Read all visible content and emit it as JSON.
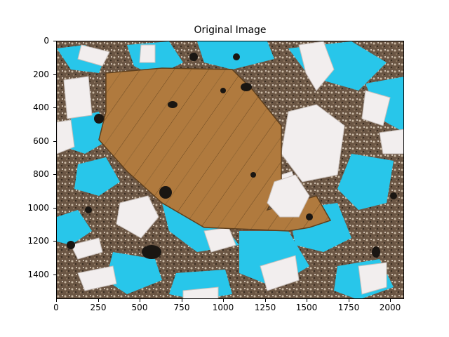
{
  "figure": {
    "title": "Original Image",
    "x_axis": {
      "range": [
        0,
        2080
      ],
      "ticks": [
        "0",
        "250",
        "500",
        "750",
        "1000",
        "1250",
        "1500",
        "1750",
        "2000"
      ],
      "tick_values": [
        0,
        250,
        500,
        750,
        1000,
        1250,
        1500,
        1750,
        2000
      ]
    },
    "y_axis": {
      "range": [
        0,
        1550
      ],
      "inverted": true,
      "ticks": [
        "0",
        "200",
        "400",
        "600",
        "800",
        "1000",
        "1200",
        "1400"
      ],
      "tick_values": [
        0,
        200,
        400,
        600,
        800,
        1000,
        1200,
        1400
      ]
    },
    "image_description_icon": "thin-section-micrograph",
    "colors": {
      "pore_blue": "#28c6ea",
      "crystal_brown": "#b07a3e",
      "feldspar_white": "#f2eeee",
      "matrix_dark": "#5a4a3c"
    }
  }
}
